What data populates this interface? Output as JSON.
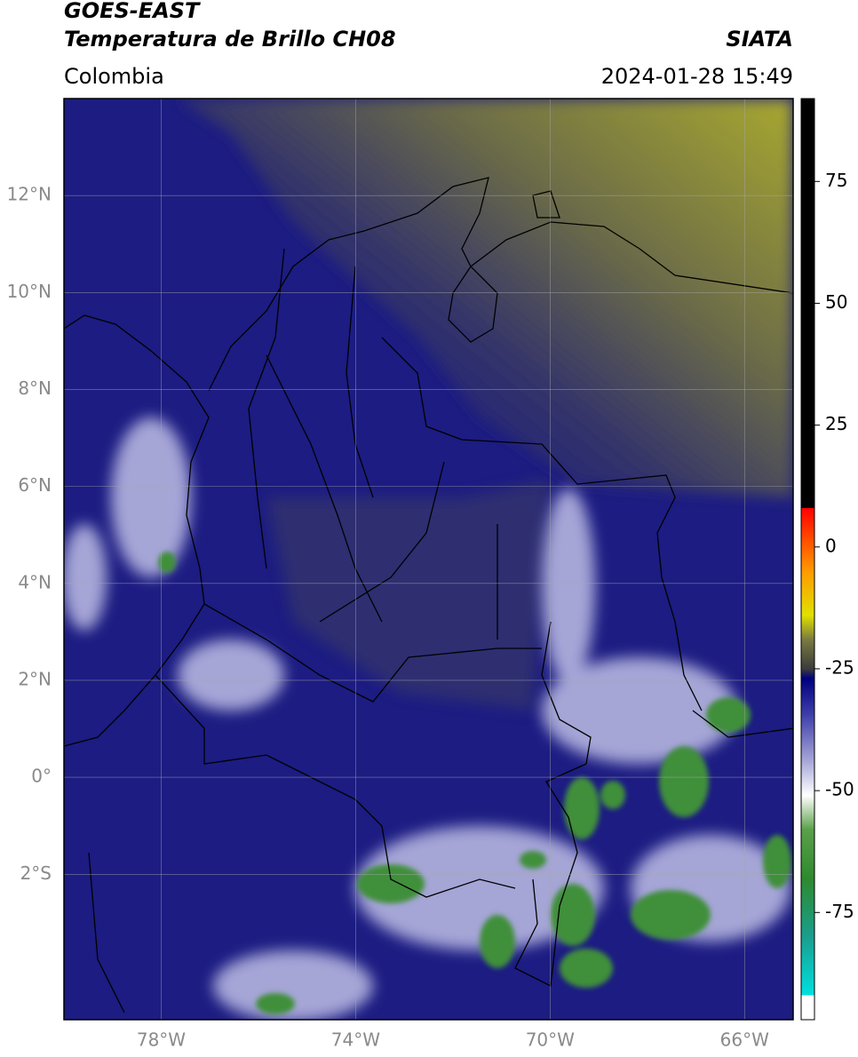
{
  "header": {
    "title": "GOES-EAST",
    "subtitle": "Temperatura de Brillo CH08",
    "source": "SIATA",
    "region": "Colombia",
    "datetime": "2024-01-28 15:49"
  },
  "map": {
    "xlim": [
      -80,
      -65
    ],
    "ylim": [
      -5,
      14
    ],
    "xticks": [
      {
        "value": -78,
        "label": "78°W"
      },
      {
        "value": -74,
        "label": "74°W"
      },
      {
        "value": -70,
        "label": "70°W"
      },
      {
        "value": -66,
        "label": "66°W"
      }
    ],
    "yticks": [
      {
        "value": 12,
        "label": "12°N"
      },
      {
        "value": 10,
        "label": "10°N"
      },
      {
        "value": 8,
        "label": "8°N"
      },
      {
        "value": 6,
        "label": "6°N"
      },
      {
        "value": 4,
        "label": "4°N"
      },
      {
        "value": 2,
        "label": "2°N"
      },
      {
        "value": 0,
        "label": "0°"
      },
      {
        "value": -2,
        "label": "2°S"
      }
    ]
  },
  "colorbar": {
    "lim": [
      -97,
      92
    ],
    "ticks": [
      75,
      50,
      25,
      0,
      -25,
      -50,
      -75
    ],
    "colormap": [
      {
        "value": -97,
        "color": "#ffffff"
      },
      {
        "value": -92,
        "color": "#ffffff"
      },
      {
        "value": -92,
        "color": "#00e0e0"
      },
      {
        "value": -80,
        "color": "#1a9e8e"
      },
      {
        "value": -68,
        "color": "#2e8a2e"
      },
      {
        "value": -58,
        "color": "#5aa04a"
      },
      {
        "value": -51,
        "color": "#ffffff"
      },
      {
        "value": -44,
        "color": "#a8a8d8"
      },
      {
        "value": -34,
        "color": "#3a3aa8"
      },
      {
        "value": -27,
        "color": "#00007e"
      },
      {
        "value": -25,
        "color": "#3c3c3c"
      },
      {
        "value": -19,
        "color": "#7a7a40"
      },
      {
        "value": -14,
        "color": "#e0e000"
      },
      {
        "value": -5,
        "color": "#ff9a00"
      },
      {
        "value": 8,
        "color": "#ff0000"
      },
      {
        "value": 8,
        "color": "#000000"
      },
      {
        "value": 92,
        "color": "#000000"
      }
    ]
  }
}
